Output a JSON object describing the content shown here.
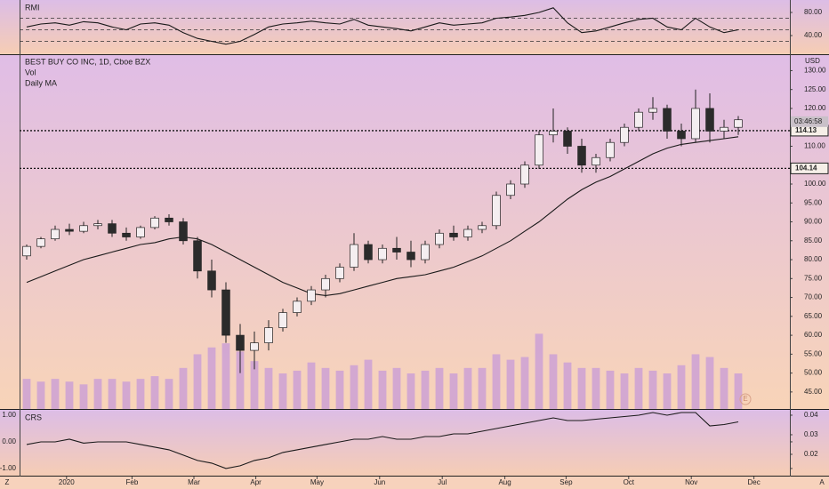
{
  "chart_data": [
    {
      "type": "line",
      "title": "RMI",
      "color": "#1a1a1a",
      "values": [
        55,
        60,
        62,
        58,
        64,
        62,
        55,
        50,
        60,
        62,
        58,
        45,
        35,
        30,
        25,
        30,
        42,
        55,
        60,
        62,
        65,
        62,
        60,
        68,
        58,
        55,
        52,
        48,
        55,
        62,
        58,
        60,
        62,
        70,
        72,
        75,
        80,
        88,
        62,
        45,
        48,
        55,
        62,
        68,
        70,
        55,
        50,
        70,
        55,
        45,
        50
      ],
      "ylim": [
        9.2,
        98.5
      ],
      "yticks": [
        {
          "value": 80,
          "label": "80.00"
        },
        {
          "value": 40,
          "label": "40.00"
        }
      ],
      "levels": [
        70,
        50,
        30
      ]
    },
    {
      "type": "candlestick",
      "title": "BEST BUY CO INC, 1D, Cboe BZX",
      "currency": "USD",
      "indicators": [
        "Vol",
        "Daily MA"
      ],
      "open": [
        81,
        83.5,
        85.5,
        88,
        87.5,
        89,
        89.5,
        87,
        86,
        88.5,
        91,
        90,
        85,
        77,
        72,
        60,
        56,
        58,
        62,
        66,
        69,
        72,
        75,
        78,
        84,
        80,
        83,
        82,
        80,
        84,
        87,
        86,
        88,
        89,
        97,
        100,
        105,
        113,
        114,
        110,
        105,
        107,
        111,
        115,
        119,
        120,
        114,
        112,
        120,
        114,
        115
      ],
      "high": [
        84,
        86,
        89,
        89.5,
        90,
        90.5,
        90.5,
        88.5,
        89,
        91.5,
        92,
        91,
        86,
        80,
        74,
        63,
        61,
        64,
        67,
        70,
        73,
        76,
        79,
        87,
        85,
        84,
        86,
        85,
        85,
        88,
        89,
        89,
        90,
        98,
        101,
        106,
        114,
        120,
        115,
        112,
        108,
        112,
        116,
        120,
        123,
        121,
        116,
        125,
        124,
        117,
        118
      ],
      "low": [
        80,
        83,
        85,
        86.5,
        87,
        88,
        86,
        85,
        85.5,
        88,
        89,
        84,
        75,
        70,
        58,
        50,
        51,
        56,
        61,
        65,
        68,
        70,
        74,
        77,
        79,
        79,
        80,
        78,
        79,
        83,
        85,
        85,
        87,
        88,
        96,
        99,
        104,
        111,
        108,
        103,
        103,
        106,
        110,
        114,
        117,
        112,
        110,
        111,
        111,
        112,
        113
      ],
      "close": [
        83.5,
        85.5,
        88,
        87.5,
        89,
        89.5,
        87,
        86,
        88.5,
        91,
        90,
        85,
        77,
        72,
        60,
        56,
        58,
        62,
        66,
        69,
        72,
        75,
        78,
        84,
        80,
        83,
        82,
        80,
        84,
        87,
        86,
        88,
        89,
        97,
        100,
        105,
        113,
        114,
        110,
        105,
        107,
        111,
        115,
        119,
        120,
        114,
        112,
        120,
        114,
        115,
        117
      ],
      "up_color": "#f4eef0",
      "down_color": "#2b2b2b",
      "ma": {
        "color": "#1a1a1a",
        "values": [
          74,
          75.5,
          77,
          78.5,
          80,
          81,
          82,
          83,
          84,
          84.5,
          85.5,
          86,
          85.5,
          84,
          82,
          80,
          78,
          76,
          74,
          72.5,
          71,
          70.5,
          71,
          72,
          73,
          74,
          75,
          75.5,
          76,
          77,
          78,
          79.5,
          81,
          83,
          85,
          87.5,
          90,
          93,
          96,
          98.5,
          100.5,
          102,
          104,
          106,
          108,
          109.5,
          110.5,
          111,
          111.5,
          112,
          112.5
        ]
      },
      "volume": {
        "color": "#c79ad8",
        "values": [
          22,
          20,
          22,
          20,
          18,
          22,
          22,
          20,
          22,
          24,
          22,
          30,
          40,
          45,
          48,
          42,
          35,
          30,
          26,
          28,
          34,
          30,
          28,
          32,
          36,
          28,
          30,
          26,
          28,
          30,
          26,
          30,
          30,
          40,
          36,
          38,
          55,
          40,
          34,
          30,
          30,
          28,
          26,
          30,
          28,
          26,
          32,
          40,
          38,
          30,
          26
        ]
      },
      "vlim": [
        0,
        65
      ],
      "ylim": [
        40.5,
        134.1
      ],
      "yticks": [
        {
          "value": 45,
          "label": "45.00"
        },
        {
          "value": 50,
          "label": "50.00"
        },
        {
          "value": 55,
          "label": "55.00"
        },
        {
          "value": 60,
          "label": "60.00"
        },
        {
          "value": 65,
          "label": "65.00"
        },
        {
          "value": 70,
          "label": "70.00"
        },
        {
          "value": 75,
          "label": "75.00"
        },
        {
          "value": 80,
          "label": "80.00"
        },
        {
          "value": 85,
          "label": "85.00"
        },
        {
          "value": 90,
          "label": "90.00"
        },
        {
          "value": 95,
          "label": "95.00"
        },
        {
          "value": 100,
          "label": "100.00"
        },
        {
          "value": 110,
          "label": "110.00"
        },
        {
          "value": 120,
          "label": "120.00"
        },
        {
          "value": 125,
          "label": "125.00"
        },
        {
          "value": 130,
          "label": "130.00"
        }
      ],
      "levels": [
        {
          "value": 114.13,
          "label": "114.13"
        },
        {
          "value": 104.14,
          "label": "104.14"
        }
      ],
      "countdown": "03:46:58",
      "countdown_at": 116.5,
      "earnings": "E",
      "earnings_at": 50.5,
      "xlim": [
        -0.5,
        53.625
      ],
      "xticks": [
        {
          "value": 2.8,
          "label": "2020"
        },
        {
          "value": 7.4,
          "label": "Feb"
        },
        {
          "value": 11.75,
          "label": "Mar"
        },
        {
          "value": 16.1,
          "label": "Apr"
        },
        {
          "value": 20.4,
          "label": "May"
        },
        {
          "value": 24.8,
          "label": "Jun"
        },
        {
          "value": 29.2,
          "label": "Jul"
        },
        {
          "value": 33.6,
          "label": "Aug"
        },
        {
          "value": 37.9,
          "label": "Sep"
        },
        {
          "value": 42.3,
          "label": "Oct"
        },
        {
          "value": 46.7,
          "label": "Nov"
        },
        {
          "value": 51.1,
          "label": "Dec"
        }
      ]
    },
    {
      "type": "line",
      "title": "CRS",
      "color": "#1a1a1a",
      "values": [
        -0.1,
        0,
        0,
        0.1,
        -0.05,
        0,
        0,
        0,
        -0.1,
        -0.2,
        -0.3,
        -0.5,
        -0.7,
        -0.8,
        -1,
        -0.9,
        -0.7,
        -0.6,
        -0.4,
        -0.3,
        -0.2,
        -0.1,
        0,
        0.1,
        0.1,
        0.2,
        0.1,
        0.1,
        0.2,
        0.2,
        0.3,
        0.3,
        0.4,
        0.5,
        0.6,
        0.7,
        0.8,
        0.9,
        0.8,
        0.8,
        0.85,
        0.9,
        0.95,
        1.0,
        1.1,
        1.0,
        1.1,
        1.1,
        0.6,
        0.65,
        0.75
      ],
      "ylim": [
        -1.27,
        1.2
      ],
      "yticks": [
        {
          "value": 1,
          "label": "1.00"
        },
        {
          "value": 0,
          "label": "0.00"
        },
        {
          "value": -1,
          "label": "-1.00"
        }
      ],
      "y2lim": [
        0.0091,
        0.0427
      ],
      "y2ticks": [
        0.04,
        0.03,
        0.02
      ]
    }
  ],
  "corner_left": "Z",
  "corner_right": "A"
}
